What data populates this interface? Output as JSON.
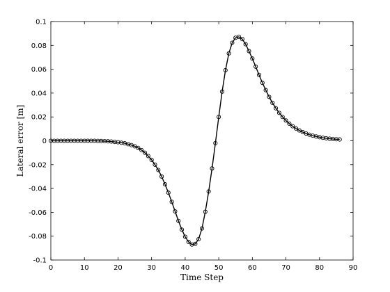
{
  "chart_data": {
    "type": "line",
    "title": "",
    "xlabel": "Time Step",
    "ylabel": "Lateral error [m]",
    "xlim": [
      0,
      90
    ],
    "ylim": [
      -0.1,
      0.1
    ],
    "grid": false,
    "x_ticks": [
      0,
      10,
      20,
      30,
      40,
      50,
      60,
      70,
      80,
      90
    ],
    "x_tick_labels": [
      "0",
      "10",
      "20",
      "30",
      "40",
      "50",
      "60",
      "70",
      "80",
      "90"
    ],
    "y_ticks": [
      -0.1,
      -0.08,
      -0.06,
      -0.04,
      -0.02,
      0,
      0.02,
      0.04,
      0.06,
      0.08,
      0.1
    ],
    "y_tick_labels": [
      "-0.1",
      "-0.08",
      "-0.06",
      "-0.04",
      "-0.02",
      "0",
      "0.02",
      "0.04",
      "0.06",
      "0.08",
      "0.1"
    ],
    "series": [
      {
        "marker": "circle",
        "line_color": "#000000",
        "x": [
          0,
          1,
          2,
          3,
          4,
          5,
          6,
          7,
          8,
          9,
          10,
          11,
          12,
          13,
          14,
          15,
          16,
          17,
          18,
          19,
          20,
          21,
          22,
          23,
          24,
          25,
          26,
          27,
          28,
          29,
          30,
          31,
          32,
          33,
          34,
          35,
          36,
          37,
          38,
          39,
          40,
          41,
          42,
          43,
          44,
          45,
          46,
          47,
          48,
          49,
          50,
          51,
          52,
          53,
          54,
          55,
          56,
          57,
          58,
          59,
          60,
          61,
          62,
          63,
          64,
          65,
          66,
          67,
          68,
          69,
          70,
          71,
          72,
          73,
          74,
          75,
          76,
          77,
          78,
          79,
          80,
          81,
          82,
          83,
          84,
          85,
          86
        ],
        "y": [
          0,
          0,
          0,
          0,
          0,
          0,
          0,
          0,
          0,
          0,
          0,
          0,
          0,
          0,
          -0.0001,
          -0.0002,
          -0.0003,
          -0.0004,
          -0.0006,
          -0.0009,
          -0.0012,
          -0.0016,
          -0.0021,
          -0.0028,
          -0.0036,
          -0.0046,
          -0.006,
          -0.0078,
          -0.01,
          -0.0128,
          -0.016,
          -0.02,
          -0.0245,
          -0.03,
          -0.0365,
          -0.0435,
          -0.0512,
          -0.0592,
          -0.0672,
          -0.0745,
          -0.0805,
          -0.0848,
          -0.087,
          -0.0865,
          -0.0825,
          -0.0735,
          -0.0595,
          -0.0425,
          -0.0232,
          -0.002,
          0.02,
          0.0412,
          0.0592,
          0.0733,
          0.0822,
          0.0864,
          0.0872,
          0.0853,
          0.081,
          0.0752,
          0.069,
          0.0622,
          0.0552,
          0.0486,
          0.0425,
          0.0368,
          0.0318,
          0.0273,
          0.0234,
          0.02,
          0.017,
          0.0144,
          0.0122,
          0.0103,
          0.0087,
          0.0073,
          0.0061,
          0.0051,
          0.0043,
          0.0036,
          0.003,
          0.0025,
          0.0021,
          0.0018,
          0.0015,
          0.0013,
          0.0011
        ]
      }
    ]
  }
}
